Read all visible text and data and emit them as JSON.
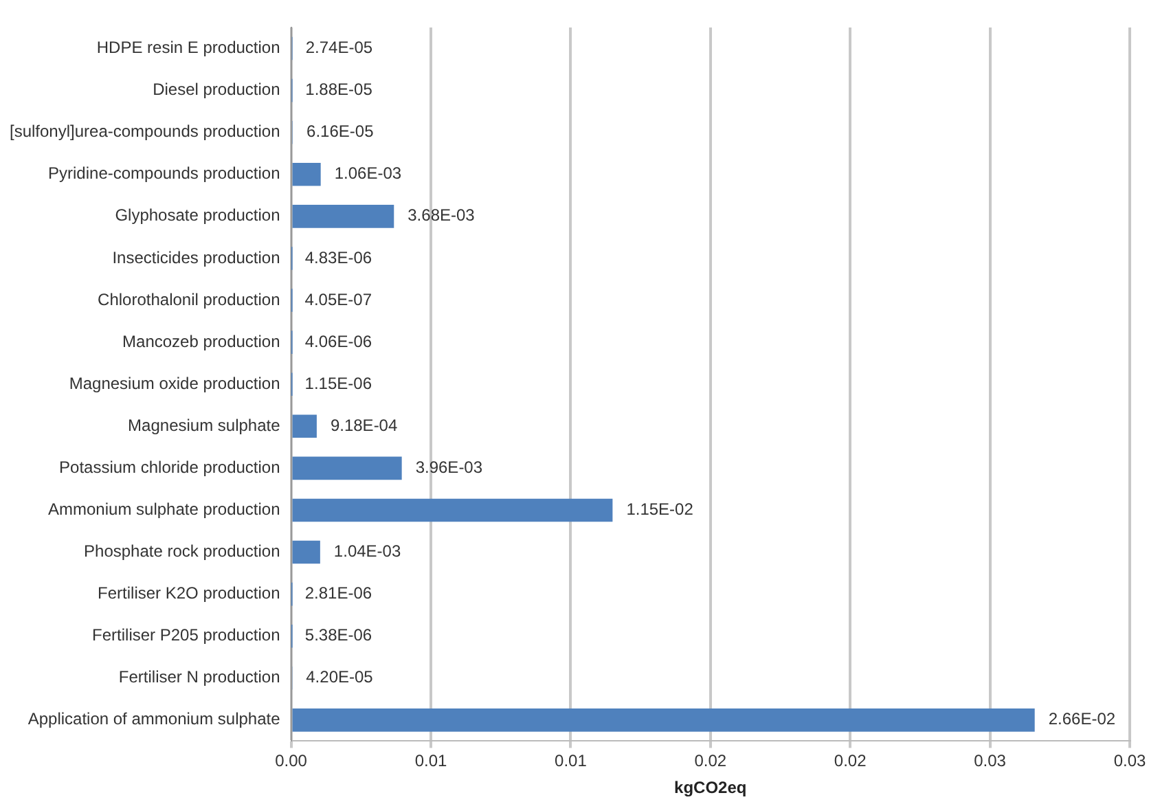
{
  "chart_data": {
    "type": "bar",
    "orientation": "horizontal",
    "xlabel": "kgCO2eq",
    "categories": [
      "HDPE resin E production",
      "Diesel production",
      "[sulfonyl]urea-compounds production",
      "Pyridine-compounds production",
      "Glyphosate production",
      "Insecticides production",
      "Chlorothalonil production",
      "Mancozeb production",
      "Magnesium oxide production",
      "Magnesium sulphate",
      "Potassium chloride production",
      "Ammonium sulphate production",
      "Phosphate rock production",
      "Fertiliser K2O production",
      "Fertiliser P205 production",
      "Fertiliser N production",
      "Application of ammonium sulphate"
    ],
    "values": [
      2.74e-05,
      1.88e-05,
      6.16e-05,
      0.00106,
      0.00368,
      4.83e-06,
      4.05e-07,
      4.06e-06,
      1.15e-06,
      0.000918,
      0.00396,
      0.0115,
      0.00104,
      2.81e-06,
      5.38e-06,
      4.2e-05,
      0.0266
    ],
    "value_labels": [
      "2.74E-05",
      "1.88E-05",
      "6.16E-05",
      "1.06E-03",
      "3.68E-03",
      "4.83E-06",
      "4.05E-07",
      "4.06E-06",
      "1.15E-06",
      "9.18E-04",
      "3.96E-03",
      "1.15E-02",
      "1.04E-03",
      "2.81E-06",
      "5.38E-06",
      "4.20E-05",
      "2.66E-02"
    ],
    "color": "#4f81bd",
    "xlim": [
      0,
      0.03
    ],
    "xticks": [
      {
        "value": 0,
        "label": "0.00"
      },
      {
        "value": 0.005,
        "label": "0.01"
      },
      {
        "value": 0.01,
        "label": "0.01"
      },
      {
        "value": 0.015,
        "label": "0.02"
      },
      {
        "value": 0.02,
        "label": "0.02"
      },
      {
        "value": 0.025,
        "label": "0.03"
      },
      {
        "value": 0.03,
        "label": "0.03"
      }
    ],
    "grid": "x",
    "legend": false
  }
}
